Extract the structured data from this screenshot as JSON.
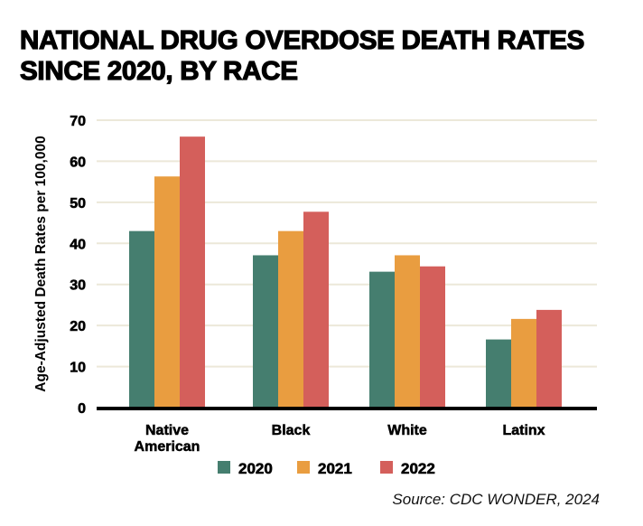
{
  "chart_data": {
    "type": "bar",
    "title": "NATIONAL DRUG OVERDOSE DEATH RATES SINCE 2020, BY RACE",
    "title_lines": [
      "NATIONAL DRUG OVERDOSE DEATH RATES",
      "SINCE 2020, BY RACE"
    ],
    "xlabel": "",
    "ylabel": "Age-Adjusted Death Rates per 100,000",
    "ylim": [
      0,
      70
    ],
    "yticks": [
      0,
      10,
      20,
      30,
      40,
      50,
      60,
      70
    ],
    "grid": true,
    "legend_position": "bottom-center",
    "categories": [
      "Native American",
      "Black",
      "White",
      "Latinx"
    ],
    "category_lines": [
      [
        "Native",
        "American"
      ],
      [
        "Black"
      ],
      [
        "White"
      ],
      [
        "Latinx"
      ]
    ],
    "series": [
      {
        "name": "2020",
        "color": "#457E6F",
        "values": [
          43.0,
          37.1,
          33.1,
          16.6
        ]
      },
      {
        "name": "2021",
        "color": "#E99D40",
        "values": [
          56.3,
          43.0,
          37.1,
          21.6
        ]
      },
      {
        "name": "2022",
        "color": "#D45F5B",
        "values": [
          66.0,
          47.7,
          34.4,
          23.8
        ]
      }
    ],
    "source": "Source: CDC WONDER, 2024"
  },
  "colors": {
    "gridline": "#ECE8D9",
    "baseline": "#000000"
  }
}
